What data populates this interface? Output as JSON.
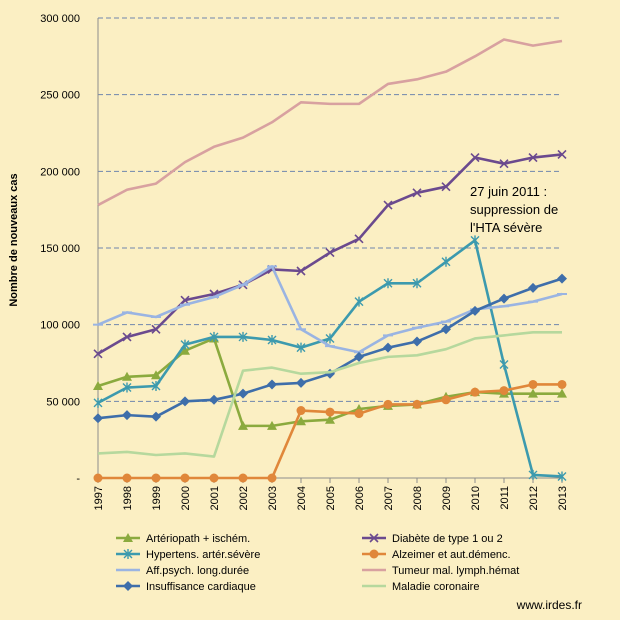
{
  "chart_data": {
    "type": "line",
    "ylabel": "Nombre de nouveaux cas",
    "ylim": [
      0,
      300000
    ],
    "yticks": [
      "-",
      "50 000",
      "100 000",
      "150 000",
      "200 000",
      "250 000",
      "300 000"
    ],
    "grid": "horizontal dashed",
    "legend_placement": "bottom",
    "categories": [
      "1997",
      "1998",
      "1999",
      "2000",
      "2001",
      "2002",
      "2003",
      "2004",
      "2005",
      "2006",
      "2007",
      "2008",
      "2009",
      "2010",
      "2011",
      "2012",
      "2013"
    ],
    "annotation": {
      "lines": [
        "27 juin 2011 :",
        "suppression de",
        "l'HTA sévère"
      ]
    },
    "series": [
      {
        "name": "Artériopath + ischém.",
        "color": "#8BAA3E",
        "marker": "triangle",
        "values": [
          60000,
          66000,
          67000,
          83000,
          91000,
          34000,
          34000,
          37000,
          38000,
          45000,
          47000,
          48000,
          53000,
          56000,
          55000,
          55000,
          55000
        ]
      },
      {
        "name": "Diabète de type 1 ou 2",
        "color": "#6B4A8E",
        "marker": "x",
        "values": [
          81000,
          92000,
          97000,
          116000,
          120000,
          126000,
          136000,
          135000,
          147000,
          156000,
          178000,
          186000,
          190000,
          209000,
          205000,
          209000,
          211000
        ]
      },
      {
        "name": "Hypertens. artér.sévère",
        "color": "#3C9AAE",
        "marker": "asterisk",
        "values": [
          49000,
          59000,
          60000,
          87000,
          92000,
          92000,
          90000,
          85000,
          91000,
          115000,
          127000,
          127000,
          141000,
          155000,
          74000,
          2000,
          1000
        ]
      },
      {
        "name": "Alzeimer et aut.démenc.",
        "color": "#E0873A",
        "marker": "circle",
        "values": [
          0,
          0,
          0,
          0,
          0,
          0,
          0,
          44000,
          43000,
          42000,
          48000,
          48000,
          51000,
          56000,
          57000,
          61000,
          61000
        ]
      },
      {
        "name": "Aff.psych. long.durée",
        "color": "#9AB4E2",
        "marker": "dash",
        "values": [
          100000,
          108000,
          105000,
          113000,
          118000,
          126000,
          138000,
          97000,
          86000,
          82000,
          93000,
          98000,
          102000,
          110000,
          112000,
          115000,
          120000
        ]
      },
      {
        "name": "Tumeur mal. lymph.hémat",
        "color": "#D8A1A0",
        "marker": "none",
        "values": [
          178000,
          188000,
          192000,
          206000,
          216000,
          222000,
          232000,
          245000,
          244000,
          244000,
          257000,
          260000,
          265000,
          275000,
          286000,
          282000,
          285000
        ]
      },
      {
        "name": "Insuffisance cardiaque",
        "color": "#3E6EAA",
        "marker": "diamond",
        "values": [
          39000,
          41000,
          40000,
          50000,
          51000,
          55000,
          61000,
          62000,
          68000,
          79000,
          85000,
          89000,
          97000,
          109000,
          117000,
          124000,
          130000
        ]
      },
      {
        "name": "Maladie coronaire",
        "color": "#B6D89D",
        "marker": "none",
        "values": [
          16000,
          17000,
          15000,
          16000,
          14000,
          70000,
          72000,
          68000,
          69000,
          75000,
          79000,
          80000,
          84000,
          91000,
          93000,
          95000,
          95000
        ]
      }
    ]
  },
  "source": "www.irdes.fr"
}
